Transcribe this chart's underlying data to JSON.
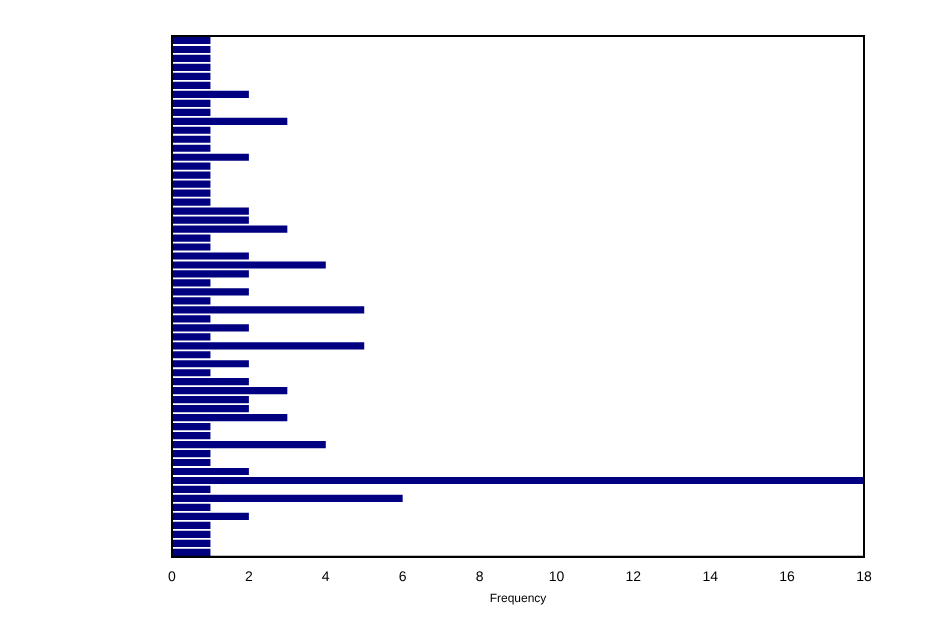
{
  "chart_data": {
    "type": "bar",
    "orientation": "horizontal",
    "xlabel": "Frequency",
    "color": "#000080",
    "categories": [
      null,
      null,
      null,
      null,
      null,
      null,
      null,
      null,
      null,
      null,
      null,
      null,
      null,
      null,
      null,
      null,
      null,
      null,
      null,
      null,
      null,
      null,
      null,
      null,
      null,
      null,
      null,
      null,
      null,
      null,
      null,
      null,
      null,
      null,
      null,
      null,
      null,
      null,
      null,
      null,
      null,
      null,
      null,
      null,
      null,
      null,
      null,
      null,
      null,
      null,
      null,
      null,
      null,
      null,
      null,
      null,
      null,
      null
    ],
    "values": [
      1,
      1,
      1,
      1,
      1,
      1,
      2,
      1,
      1,
      3,
      1,
      1,
      1,
      2,
      1,
      1,
      1,
      1,
      1,
      2,
      2,
      3,
      1,
      1,
      2,
      4,
      2,
      1,
      2,
      1,
      5,
      1,
      2,
      1,
      5,
      1,
      2,
      1,
      2,
      3,
      2,
      2,
      3,
      1,
      1,
      4,
      1,
      1,
      2,
      18,
      1,
      6,
      1,
      2,
      1,
      1,
      1,
      1
    ],
    "xlim": [
      0,
      18
    ],
    "xticks": [
      0,
      2,
      4,
      6,
      8,
      10,
      12,
      14,
      16,
      18
    ]
  }
}
